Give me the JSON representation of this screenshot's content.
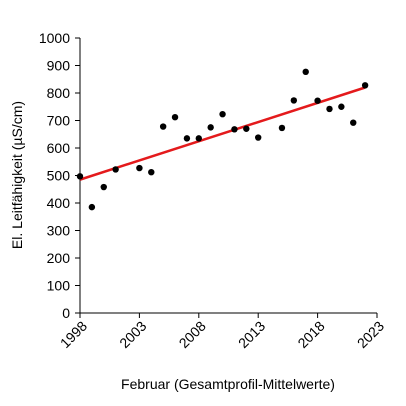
{
  "chart_data": {
    "type": "scatter",
    "title": "",
    "xlabel": "Februar (Gesamtprofil-Mittelwerte)",
    "ylabel": "El. Leitfähigkeit (µS/cm)",
    "xlim": [
      1998,
      2023
    ],
    "ylim": [
      0,
      1000
    ],
    "xticks": [
      1998,
      2003,
      2008,
      2013,
      2018,
      2023
    ],
    "yticks": [
      0,
      100,
      200,
      300,
      400,
      500,
      600,
      700,
      800,
      900,
      1000
    ],
    "grid": false,
    "legend": "none",
    "series": [
      {
        "points": [
          {
            "x": 1998,
            "y": 497
          },
          {
            "x": 1999,
            "y": 385
          },
          {
            "x": 2000,
            "y": 458
          },
          {
            "x": 2001,
            "y": 522
          },
          {
            "x": 2003,
            "y": 527
          },
          {
            "x": 2004,
            "y": 512
          },
          {
            "x": 2005,
            "y": 678
          },
          {
            "x": 2006,
            "y": 712
          },
          {
            "x": 2007,
            "y": 635
          },
          {
            "x": 2008,
            "y": 635
          },
          {
            "x": 2009,
            "y": 675
          },
          {
            "x": 2010,
            "y": 723
          },
          {
            "x": 2011,
            "y": 668
          },
          {
            "x": 2012,
            "y": 670
          },
          {
            "x": 2013,
            "y": 638
          },
          {
            "x": 2015,
            "y": 673
          },
          {
            "x": 2016,
            "y": 773
          },
          {
            "x": 2017,
            "y": 877
          },
          {
            "x": 2018,
            "y": 772
          },
          {
            "x": 2019,
            "y": 742
          },
          {
            "x": 2020,
            "y": 750
          },
          {
            "x": 2021,
            "y": 692
          },
          {
            "x": 2022,
            "y": 828
          }
        ]
      }
    ],
    "trendline": {
      "type": "linear",
      "x": [
        1998,
        2022
      ],
      "y": [
        485,
        820
      ]
    },
    "colors": {
      "points": "#000000",
      "trendline": "#e41a1c",
      "axis": "#000000"
    }
  }
}
